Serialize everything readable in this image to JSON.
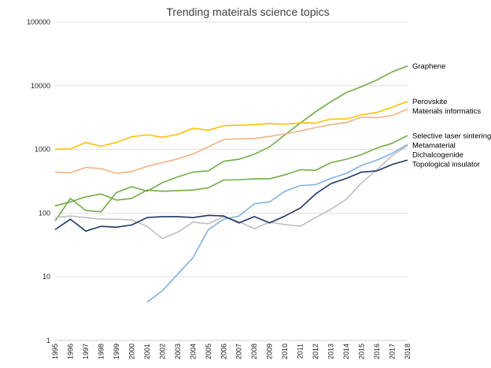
{
  "chart_data": {
    "type": "line",
    "title": "Trending mateirals science topics",
    "xlabel": "",
    "ylabel": "",
    "yscale": "log",
    "ylim": [
      1,
      100000
    ],
    "y_ticks": [
      "1",
      "10",
      "100",
      "1000",
      "10000",
      "100000"
    ],
    "grid": "horizontal",
    "legend": "right, labels at line ends",
    "x": [
      "1995",
      "1996",
      "1997",
      "1998",
      "1999",
      "2000",
      "2001",
      "2002",
      "2003",
      "2004",
      "2005",
      "2006",
      "2007",
      "2008",
      "2009",
      "2010",
      "2011",
      "2012",
      "2013",
      "2014",
      "2015",
      "2016",
      "2017",
      "2018"
    ],
    "series": [
      {
        "name": "Graphene",
        "color": "#70ad47",
        "values": [
          75,
          170,
          110,
          105,
          210,
          260,
          220,
          300,
          370,
          440,
          460,
          650,
          700,
          840,
          1100,
          1700,
          2600,
          3900,
          5600,
          7800,
          9700,
          12300,
          16500,
          20500
        ]
      },
      {
        "name": "Perovskite",
        "color": "#ffc000",
        "values": [
          1000,
          1020,
          1280,
          1120,
          1290,
          1580,
          1700,
          1550,
          1720,
          2150,
          2000,
          2350,
          2400,
          2450,
          2550,
          2480,
          2600,
          2600,
          3000,
          3000,
          3500,
          3800,
          4600,
          5700
        ]
      },
      {
        "name": "Materials informatics",
        "color": "#f4b183",
        "values": [
          440,
          430,
          520,
          500,
          420,
          450,
          540,
          620,
          710,
          850,
          1100,
          1430,
          1460,
          1480,
          1600,
          1750,
          1950,
          2200,
          2450,
          2650,
          3200,
          3150,
          3400,
          4300
        ]
      },
      {
        "name": "Selective laser sintering",
        "color": "#70ad47",
        "values": [
          130,
          150,
          180,
          200,
          160,
          170,
          230,
          220,
          225,
          230,
          250,
          330,
          335,
          345,
          345,
          400,
          480,
          470,
          620,
          700,
          830,
          1050,
          1250,
          1650
        ]
      },
      {
        "name": "Metamaterial",
        "color": "#7fb2e0",
        "values": [
          null,
          null,
          null,
          null,
          null,
          null,
          4,
          6,
          11,
          20,
          55,
          80,
          90,
          140,
          150,
          220,
          270,
          280,
          350,
          420,
          560,
          680,
          870,
          1200
        ]
      },
      {
        "name": "Dichalcogenide",
        "color": "#bfbfbf",
        "values": [
          85,
          90,
          85,
          80,
          80,
          78,
          62,
          40,
          50,
          72,
          68,
          88,
          73,
          57,
          72,
          66,
          62,
          85,
          115,
          165,
          300,
          480,
          800,
          1150
        ]
      },
      {
        "name": "Topological insulator",
        "color": "#1f3864",
        "values": [
          55,
          80,
          52,
          62,
          60,
          65,
          85,
          88,
          88,
          85,
          92,
          90,
          70,
          88,
          70,
          90,
          120,
          200,
          290,
          350,
          440,
          460,
          580,
          680
        ]
      }
    ]
  }
}
